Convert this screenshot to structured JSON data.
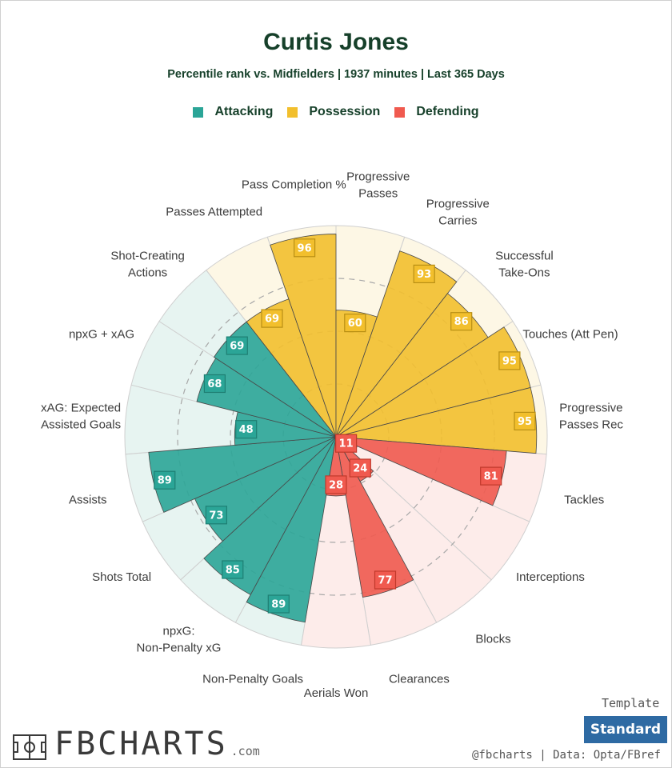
{
  "header": {
    "title": "Curtis Jones",
    "subtitle": "Percentile rank vs. Midfielders | 1937 minutes | Last 365 Days"
  },
  "legend": [
    {
      "label": "Attacking",
      "color": "#2ba597"
    },
    {
      "label": "Possession",
      "color": "#f2bf2d"
    },
    {
      "label": "Defending",
      "color": "#f05a4f"
    }
  ],
  "chart_data": {
    "type": "polar-bar",
    "rmax": 100,
    "gridlines": [
      25,
      50,
      75
    ],
    "categories": [
      {
        "label": "Non-Penalty Goals",
        "value": 89,
        "group": "Attacking"
      },
      {
        "label": "npxG: Non-Penalty xG",
        "value": 85,
        "group": "Attacking"
      },
      {
        "label": "Shots Total",
        "value": 73,
        "group": "Attacking"
      },
      {
        "label": "Assists",
        "value": 89,
        "group": "Attacking"
      },
      {
        "label": "xAG: Expected Assisted Goals",
        "value": 48,
        "group": "Attacking"
      },
      {
        "label": "npxG + xAG",
        "value": 68,
        "group": "Attacking"
      },
      {
        "label": "Shot-Creating Actions",
        "value": 69,
        "group": "Attacking"
      },
      {
        "label": "Passes Attempted",
        "value": 69,
        "group": "Possession"
      },
      {
        "label": "Pass Completion %",
        "value": 96,
        "group": "Possession"
      },
      {
        "label": "Progressive Passes",
        "value": 60,
        "group": "Possession"
      },
      {
        "label": "Progressive Carries",
        "value": 93,
        "group": "Possession"
      },
      {
        "label": "Successful Take-Ons",
        "value": 86,
        "group": "Possession"
      },
      {
        "label": "Touches (Att Pen)",
        "value": 95,
        "group": "Possession"
      },
      {
        "label": "Progressive Passes Rec",
        "value": 95,
        "group": "Possession"
      },
      {
        "label": "Tackles",
        "value": 81,
        "group": "Defending"
      },
      {
        "label": "Interceptions",
        "value": 11,
        "group": "Defending"
      },
      {
        "label": "Blocks",
        "value": 24,
        "group": "Defending"
      },
      {
        "label": "Clearances",
        "value": 77,
        "group": "Defending"
      },
      {
        "label": "Aerials Won",
        "value": 28,
        "group": "Defending"
      }
    ]
  },
  "footer": {
    "logo_text": "FBCHARTS",
    "logo_suffix": ".com",
    "template_label": "Template",
    "template_value": "Standard",
    "credit": "@fbcharts | Data: Opta/FBref"
  }
}
